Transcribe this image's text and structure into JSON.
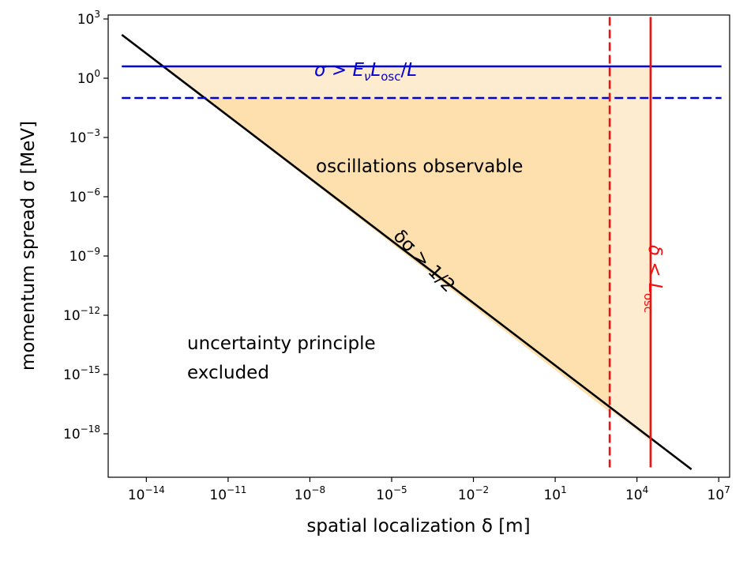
{
  "chart_data": {
    "type": "line",
    "xlabel": "spatial localization δ [m]",
    "ylabel": "momentum spread σ [MeV]",
    "x_scale": "log10",
    "y_scale": "log10",
    "xlim_log10": [
      -15.4,
      7.4
    ],
    "ylim_log10": [
      -20.2,
      3.2
    ],
    "x_ticks_log10": [
      -14,
      -11,
      -8,
      -5,
      -2,
      1,
      4,
      7
    ],
    "y_ticks_log10": [
      -18,
      -15,
      -12,
      -9,
      -6,
      -3,
      0,
      3
    ],
    "tick_base": "10",
    "series": [
      {
        "name": "uncertainty bound δσ > 1/2",
        "style": "solid",
        "color": "#000000",
        "x_log10": [
          -14.9,
          6.0
        ],
        "y_log10": [
          2.2,
          -19.8
        ]
      },
      {
        "name": "σ > E_ν L_osc / L",
        "style": "solid",
        "color": "#0000dd",
        "x_log10": [
          -14.9,
          7.1
        ],
        "y_log10": [
          0.6,
          0.6
        ]
      },
      {
        "name": "σ threshold (dashed)",
        "style": "dashed",
        "color": "#0000dd",
        "x_log10": [
          -14.9,
          7.1
        ],
        "y_log10": [
          -1.0,
          -1.0
        ]
      },
      {
        "name": "δ < L_osc",
        "style": "solid",
        "color": "#ee1111",
        "x_log10": [
          4.5,
          4.5
        ],
        "y_log10": [
          3.1,
          -19.7
        ]
      },
      {
        "name": "δ threshold (dashed)",
        "style": "dashed",
        "color": "#ee1111",
        "x_log10": [
          3.0,
          3.0
        ],
        "y_log10": [
          3.1,
          -19.7
        ]
      }
    ],
    "regions": [
      {
        "name": "oscillations-observable-region",
        "color": "#fde2b3",
        "vertices_log10": [
          [
            -13.4,
            0.6
          ],
          [
            4.5,
            0.6
          ],
          [
            4.5,
            -18.4
          ]
        ]
      },
      {
        "name": "oscillations-observable-core",
        "color": "#fcd9a0",
        "vertices_log10": [
          [
            -11.9,
            -1.0
          ],
          [
            3.0,
            -1.0
          ],
          [
            3.0,
            -16.9
          ]
        ]
      }
    ],
    "annotations": {
      "sigma_label": {
        "italic": "σ",
        "op": " > ",
        "E": "E",
        "E_sub": "ν",
        "L": "L",
        "L_sub": "osc",
        "tail": "/",
        "L2": "L"
      },
      "uncertainty_label": {
        "text": "δσ > 1/2"
      },
      "delta_label": {
        "italic": "δ",
        "op": " < ",
        "L": "L",
        "L_sub": "osc"
      },
      "oscillations": "oscillations observable",
      "excluded_line1": "uncertainty principle",
      "excluded_line2": "excluded"
    }
  },
  "colors": {
    "fill_light": "#fdecd0",
    "fill_core": "#fde0ae",
    "axis": "#000000"
  }
}
